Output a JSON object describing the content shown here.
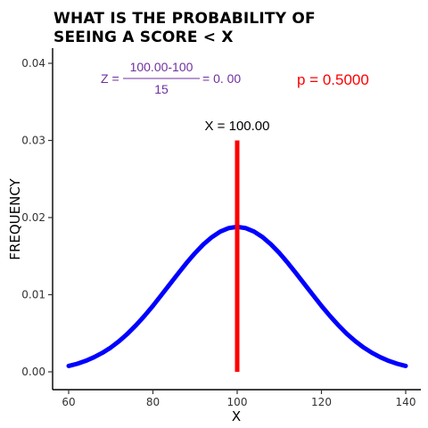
{
  "chart_data": {
    "type": "line",
    "title_lines": [
      "WHAT IS THE PROBABILITY OF",
      "SEEING A SCORE < X"
    ],
    "xlabel": "X",
    "ylabel": "FREQUENCY",
    "xlim": [
      60,
      140
    ],
    "ylim": [
      0,
      0.04
    ],
    "x_ticks": [
      60,
      80,
      100,
      120,
      140
    ],
    "x_tick_labels": [
      "60",
      "80",
      "100",
      "120",
      "140"
    ],
    "y_ticks": [
      0,
      0.01,
      0.02,
      0.03,
      0.04
    ],
    "y_tick_labels": [
      "0.00",
      "0.01",
      "0.02",
      "0.03",
      "0.04"
    ],
    "grid": false,
    "series": [
      {
        "name": "",
        "color": "#0000ff",
        "x": [
          60,
          62,
          64,
          66,
          68,
          70,
          72,
          74,
          76,
          78,
          80,
          82,
          84,
          86,
          88,
          90,
          92,
          94,
          96,
          98,
          100,
          102,
          104,
          106,
          108,
          110,
          112,
          114,
          116,
          118,
          120,
          122,
          124,
          126,
          128,
          130,
          132,
          134,
          136,
          138,
          140
        ],
        "y": [
          0.00076,
          0.00104,
          0.00141,
          0.00188,
          0.00246,
          0.00316,
          0.00399,
          0.00495,
          0.00605,
          0.00726,
          0.00856,
          0.00994,
          0.01135,
          0.01276,
          0.01413,
          0.0154,
          0.01653,
          0.01747,
          0.01819,
          0.01864,
          0.0188,
          0.01864,
          0.01819,
          0.01747,
          0.01653,
          0.0154,
          0.01413,
          0.01276,
          0.01135,
          0.00994,
          0.00856,
          0.00726,
          0.00605,
          0.00495,
          0.00399,
          0.00316,
          0.00246,
          0.00188,
          0.00141,
          0.00104,
          0.00076
        ]
      }
    ],
    "marker_line": {
      "x": 100,
      "y_from": 0,
      "y_to": 0.03,
      "color": "#ff0000"
    },
    "annotations": {
      "x_value": {
        "text": "X =  100.00",
        "color": "#000000"
      },
      "z_formula": {
        "lhs": "Z =",
        "numerator": "100.00-100",
        "denominator": "15",
        "rhs": "= 0. 00",
        "color": "#7030a0"
      },
      "p_value": {
        "text": "p =  0.5000",
        "color": "#ff0000"
      }
    }
  }
}
